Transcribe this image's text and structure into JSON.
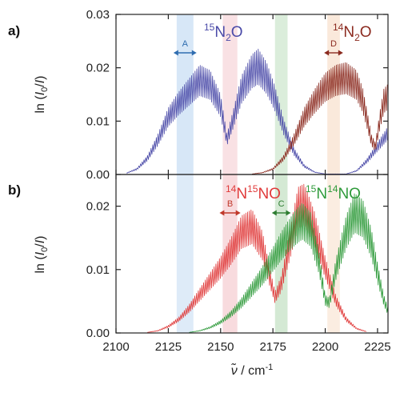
{
  "chart_data": [
    {
      "panel": "a)",
      "type": "line",
      "ylabel": "ln (I0/I)",
      "xlim": [
        2100,
        2230
      ],
      "ylim": [
        0,
        0.03
      ],
      "x_ticks": [
        2100,
        2125,
        2150,
        2175,
        2200,
        2225
      ],
      "y_ticks": [
        "0.00",
        "0.01",
        "0.02",
        "0.03"
      ],
      "grid": false,
      "series": [
        {
          "name": "15N2O",
          "color": "#4a4aa8",
          "points": [
            [
              2105,
              0.0003
            ],
            [
              2110,
              0.0012
            ],
            [
              2115,
              0.0035
            ],
            [
              2120,
              0.0075
            ],
            [
              2125,
              0.0125
            ],
            [
              2130,
              0.0155
            ],
            [
              2135,
              0.018
            ],
            [
              2140,
              0.0205
            ],
            [
              2145,
              0.0195
            ],
            [
              2150,
              0.015
            ],
            [
              2153,
              0.0075
            ],
            [
              2156,
              0.012
            ],
            [
              2160,
              0.0185
            ],
            [
              2165,
              0.0225
            ],
            [
              2168,
              0.0235
            ],
            [
              2172,
              0.021
            ],
            [
              2176,
              0.0165
            ],
            [
              2180,
              0.0105
            ],
            [
              2185,
              0.005
            ],
            [
              2190,
              0.0018
            ],
            [
              2195,
              0.0005
            ],
            [
              2200,
              0.0001
            ],
            [
              2210,
              0.0001
            ],
            [
              2215,
              0.0008
            ],
            [
              2220,
              0.003
            ],
            [
              2225,
              0.006
            ],
            [
              2230,
              0.009
            ]
          ]
        },
        {
          "name": "14N2O",
          "color": "#8b2a1f",
          "points": [
            [
              2165,
              0.0001
            ],
            [
              2170,
              0.0004
            ],
            [
              2175,
              0.0012
            ],
            [
              2180,
              0.0035
            ],
            [
              2185,
              0.0075
            ],
            [
              2190,
              0.0125
            ],
            [
              2195,
              0.016
            ],
            [
              2200,
              0.019
            ],
            [
              2205,
              0.0205
            ],
            [
              2210,
              0.021
            ],
            [
              2215,
              0.0195
            ],
            [
              2218,
              0.016
            ],
            [
              2220,
              0.012
            ],
            [
              2222,
              0.0075
            ],
            [
              2224,
              0.006
            ],
            [
              2226,
              0.0115
            ],
            [
              2228,
              0.016
            ],
            [
              2230,
              0.017
            ]
          ]
        }
      ],
      "labels": {
        "15N2O": {
          "sup": "15",
          "base": "N",
          "sub": "2",
          "tail": "O"
        },
        "14N2O": {
          "sup": "14",
          "base": "N",
          "sub": "2",
          "tail": "O"
        }
      },
      "bands": [
        {
          "letter": "A",
          "from": 2129,
          "to": 2137,
          "color": "#4a90d9",
          "text_color": "#2f6db0"
        },
        {
          "letter": "D",
          "from": 2201,
          "to": 2207,
          "color": "#e89a5a",
          "text_color": "#8b2a1f"
        }
      ],
      "side_bands": [
        {
          "from": 2151,
          "to": 2158,
          "color": "#e05a6a"
        },
        {
          "from": 2176,
          "to": 2182,
          "color": "#3a9a3a"
        }
      ]
    },
    {
      "panel": "b)",
      "type": "line",
      "ylabel": "ln (I0/I)",
      "xlabel": "ν̃ / cm-1",
      "xlim": [
        2100,
        2230
      ],
      "ylim": [
        0,
        0.025
      ],
      "x_ticks": [
        2100,
        2125,
        2150,
        2175,
        2200,
        2225
      ],
      "y_ticks": [
        "0.00",
        "0.01",
        "0.02"
      ],
      "grid": false,
      "series": [
        {
          "name": "14N15NO",
          "color": "#e03a3a",
          "points": [
            [
              2115,
              0.0001
            ],
            [
              2120,
              0.0004
            ],
            [
              2125,
              0.0012
            ],
            [
              2130,
              0.0025
            ],
            [
              2135,
              0.0045
            ],
            [
              2140,
              0.007
            ],
            [
              2145,
              0.0095
            ],
            [
              2150,
              0.012
            ],
            [
              2155,
              0.015
            ],
            [
              2160,
              0.0185
            ],
            [
              2165,
              0.0195
            ],
            [
              2170,
              0.016
            ],
            [
              2173,
              0.011
            ],
            [
              2176,
              0.0065
            ],
            [
              2179,
              0.009
            ],
            [
              2183,
              0.016
            ],
            [
              2187,
              0.023
            ],
            [
              2190,
              0.0235
            ],
            [
              2195,
              0.019
            ],
            [
              2200,
              0.012
            ],
            [
              2205,
              0.006
            ],
            [
              2210,
              0.0025
            ],
            [
              2215,
              0.0008
            ],
            [
              2220,
              0.0002
            ]
          ]
        },
        {
          "name": "15N14NO",
          "color": "#2e9a3a",
          "points": [
            [
              2135,
              0.0001
            ],
            [
              2140,
              0.0004
            ],
            [
              2145,
              0.001
            ],
            [
              2150,
              0.002
            ],
            [
              2155,
              0.0035
            ],
            [
              2160,
              0.0055
            ],
            [
              2165,
              0.008
            ],
            [
              2170,
              0.0105
            ],
            [
              2175,
              0.0135
            ],
            [
              2180,
              0.0165
            ],
            [
              2185,
              0.019
            ],
            [
              2189,
              0.0205
            ],
            [
              2193,
              0.019
            ],
            [
              2197,
              0.013
            ],
            [
              2200,
              0.006
            ],
            [
              2202,
              0.0055
            ],
            [
              2205,
              0.0115
            ],
            [
              2210,
              0.0185
            ],
            [
              2214,
              0.022
            ],
            [
              2218,
              0.021
            ],
            [
              2222,
              0.0165
            ],
            [
              2225,
              0.011
            ],
            [
              2228,
              0.006
            ],
            [
              2230,
              0.004
            ]
          ]
        }
      ],
      "labels": {
        "14N15NO": {
          "sup1": "14",
          "base1": "N",
          "sup2": "15",
          "tail": "NO"
        },
        "15N14NO": {
          "sup1": "15",
          "base1": "N",
          "sup2": "14",
          "tail": "NO"
        }
      },
      "bands": [
        {
          "letter": "B",
          "from": 2151,
          "to": 2158,
          "color": "#e05a6a",
          "text_color": "#c0392b"
        },
        {
          "letter": "C",
          "from": 2176,
          "to": 2182,
          "color": "#3a9a3a",
          "text_color": "#2e7d32"
        }
      ],
      "side_bands": [
        {
          "from": 2129,
          "to": 2137,
          "color": "#4a90d9"
        },
        {
          "from": 2201,
          "to": 2207,
          "color": "#e89a5a"
        }
      ]
    }
  ]
}
